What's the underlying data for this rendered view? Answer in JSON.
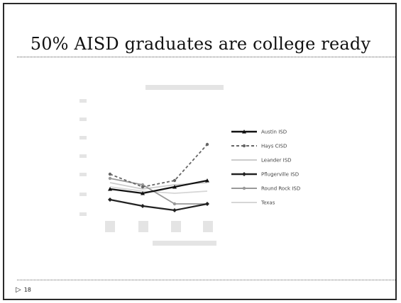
{
  "slide": {
    "title": "50% AISD graduates are college ready",
    "page_number": "18"
  },
  "chart_data": {
    "type": "line",
    "title": "",
    "xlabel": "",
    "ylabel": "",
    "categories": [
      "2007",
      "2008",
      "2009",
      "2010"
    ],
    "legend_position": "right",
    "series": [
      {
        "name": "Austin ISD",
        "values": [
          51,
          49,
          52,
          55
        ],
        "color": "#111111",
        "marker": "triangle"
      },
      {
        "name": "Hays CISD",
        "values": [
          58,
          52,
          55,
          72
        ],
        "color": "#666666",
        "marker": "circle",
        "dashed": true
      },
      {
        "name": "Leander ISD",
        "values": [
          54,
          51,
          53,
          54
        ],
        "color": "#cccccc",
        "marker": "none"
      },
      {
        "name": "Pflugerville ISD",
        "values": [
          46,
          43,
          41,
          44
        ],
        "color": "#222222",
        "marker": "diamond"
      },
      {
        "name": "Round Rock ISD",
        "values": [
          56,
          53,
          44,
          44
        ],
        "color": "#999999",
        "marker": "circle"
      },
      {
        "name": "Texas",
        "values": [
          52,
          50,
          49,
          50
        ],
        "color": "#d6d6d6",
        "marker": "none"
      }
    ]
  }
}
